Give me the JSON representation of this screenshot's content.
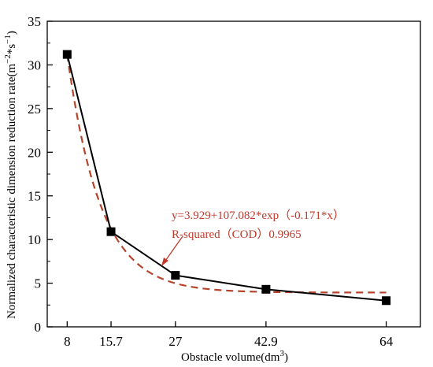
{
  "chart_data": {
    "type": "line",
    "xlabel": "Obstacle volume(dm",
    "xlabel_sup": "3",
    "xlabel_end": ")",
    "ylabel": "Normalized characteristic dimension reduction rate(m",
    "ylabel_sup1": "−2",
    "ylabel_mid": "*s",
    "ylabel_sup2": "−1",
    "ylabel_end": ")",
    "xlim": [
      4.5,
      70
    ],
    "ylim": [
      0,
      35
    ],
    "xticks": [
      8,
      15.7,
      27,
      42.9,
      64
    ],
    "xtick_labels": [
      "8",
      "15.7",
      "27",
      "42.9",
      "64"
    ],
    "yticks": [
      0,
      5,
      10,
      15,
      20,
      25,
      30,
      35
    ],
    "ytick_labels": [
      "0",
      "5",
      "10",
      "15",
      "20",
      "25",
      "30",
      "35"
    ],
    "series": [
      {
        "style": "line-with-square-markers",
        "color": "#000000",
        "x": [
          8,
          15.7,
          27,
          42.9,
          64
        ],
        "y": [
          31.2,
          10.9,
          5.9,
          4.3,
          3.0
        ]
      }
    ],
    "fit": {
      "style": "dashed",
      "color": "#b5442b",
      "equation": "y=3.929+107.082*exp（-0.171*x）",
      "r_squared_label": "R-squared（COD）0.9965",
      "a": 3.929,
      "b": 107.082,
      "c": -0.171,
      "x_range": [
        8,
        64
      ]
    },
    "grid": false,
    "legend": "none"
  }
}
